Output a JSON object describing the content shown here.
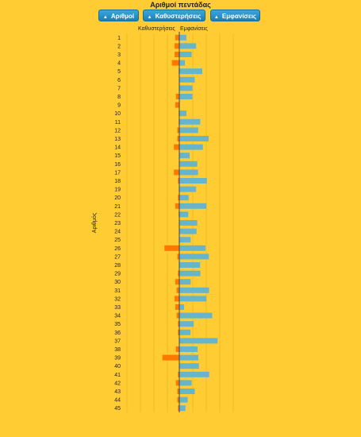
{
  "page": {
    "title": "Αριθμοί πεντάδας",
    "sort_buttons": [
      {
        "label": "Αριθμοί",
        "arrow": "▲"
      },
      {
        "label": "Καθυστερήσεις",
        "arrow": "▲"
      },
      {
        "label": "Εμφανίσεις",
        "arrow": "▲"
      }
    ]
  },
  "colors": {
    "background": "#FFCC33",
    "delays_bar": "#FF7700",
    "appearances_bar": "#66B5CC",
    "button": "#2B93CC"
  },
  "chart_data": {
    "type": "bar",
    "orientation": "horizontal-butterfly",
    "ylabel": "Αριθμός",
    "categories": [
      "1",
      "2",
      "3",
      "4",
      "5",
      "6",
      "7",
      "8",
      "9",
      "10",
      "11",
      "12",
      "13",
      "14",
      "15",
      "16",
      "17",
      "18",
      "19",
      "20",
      "21",
      "22",
      "23",
      "24",
      "25",
      "26",
      "27",
      "28",
      "29",
      "30",
      "31",
      "32",
      "33",
      "34",
      "35",
      "36",
      "37",
      "38",
      "39",
      "40",
      "41",
      "42",
      "43",
      "44",
      "45"
    ],
    "series": [
      {
        "name": "Καθυστερήσεις",
        "side": "left",
        "xlim": [
          0,
          60
        ],
        "ticks": [
          "60",
          "45",
          "30",
          "15",
          "0"
        ],
        "values": [
          6,
          7,
          7,
          11,
          1,
          0,
          0,
          5,
          6,
          1,
          1,
          3,
          3,
          8,
          0,
          0,
          8,
          2,
          0,
          2,
          6,
          1,
          0,
          0,
          0,
          22,
          3,
          0,
          2,
          6,
          4,
          7,
          6,
          4,
          2,
          2,
          0,
          5,
          25,
          0,
          2,
          5,
          3,
          3,
          2
        ]
      },
      {
        "name": "Εμφανίσεις",
        "side": "right",
        "xlim": [
          0,
          280
        ],
        "ticks": [
          "0",
          "20",
          "220",
          "240",
          "260",
          "280"
        ],
        "values": [
          38,
          90,
          66,
          30,
          123,
          83,
          70,
          70,
          0,
          38,
          112,
          101,
          157,
          126,
          55,
          96,
          100,
          148,
          90,
          50,
          145,
          48,
          96,
          92,
          61,
          140,
          158,
          111,
          113,
          61,
          159,
          145,
          26,
          176,
          77,
          60,
          205,
          98,
          102,
          105,
          160,
          66,
          83,
          45,
          33
        ]
      }
    ]
  }
}
